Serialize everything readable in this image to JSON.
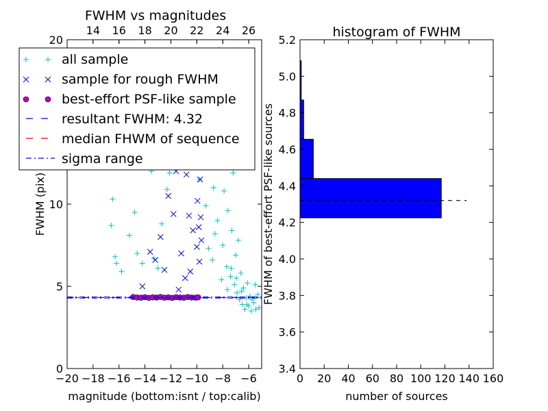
{
  "chart_data": [
    {
      "type": "scatter",
      "title": "FWHM vs magnitudes",
      "xlabel": "magnitude (bottom:isnt / top:calib)",
      "ylabel": "FWHM (pix)",
      "xlim": [
        -20,
        -5
      ],
      "ylim": [
        0,
        20
      ],
      "x_ticks": [
        -20,
        -18,
        -16,
        -14,
        -12,
        -10,
        -8,
        -6
      ],
      "x_tick_labels": [
        "−20",
        "−18",
        "−16",
        "−14",
        "−12",
        "−10",
        "−8",
        "−6"
      ],
      "y_ticks": [
        0,
        5,
        10,
        20
      ],
      "y_tick_labels": [
        "0",
        "5",
        "10",
        "20"
      ],
      "top_axis": {
        "offset": 32,
        "ticks": [
          14,
          16,
          18,
          20,
          22,
          24,
          26
        ],
        "tick_labels": [
          "14",
          "16",
          "18",
          "20",
          "22",
          "24",
          "26"
        ]
      },
      "colors": {
        "all": "#00bfbf",
        "rough": "#0000ff",
        "best_face": "#bf00bf",
        "resultant": "#0000ff",
        "median": "#ff0000",
        "sigma": "#0000ff"
      },
      "series": [
        {
          "name": "all sample",
          "marker": "+",
          "color": "#00bfbf",
          "points": [
            [
              -16.6,
              8.7
            ],
            [
              -16.5,
              10.3
            ],
            [
              -16.3,
              6.8
            ],
            [
              -16.2,
              6.4
            ],
            [
              -15.8,
              5.9
            ],
            [
              -15.2,
              8.1
            ],
            [
              -14.8,
              9.5
            ],
            [
              -14.6,
              7.0
            ],
            [
              -14.2,
              6.4
            ],
            [
              -13.9,
              12.9
            ],
            [
              -13.5,
              12.0
            ],
            [
              -13.3,
              6.7
            ],
            [
              -13.0,
              6.1
            ],
            [
              -12.7,
              8.8
            ],
            [
              -12.3,
              10.9
            ],
            [
              -12.1,
              11.9
            ],
            [
              -11.6,
              14.6
            ],
            [
              -11.3,
              15.3
            ],
            [
              -11.0,
              13.2
            ],
            [
              -10.8,
              14.1
            ],
            [
              -10.5,
              12.5
            ],
            [
              -10.1,
              13.1
            ],
            [
              -10.0,
              18.2
            ],
            [
              -9.8,
              11.5
            ],
            [
              -9.6,
              19.3
            ],
            [
              -9.4,
              13.4
            ],
            [
              -9.2,
              14.5
            ],
            [
              -9.0,
              15.8
            ],
            [
              -8.9,
              17.2
            ],
            [
              -8.7,
              11.0
            ],
            [
              -8.5,
              13.8
            ],
            [
              -8.4,
              9.0
            ],
            [
              -8.3,
              19.4
            ],
            [
              -8.2,
              12.4
            ],
            [
              -8.0,
              7.5
            ],
            [
              -7.9,
              10.8
            ],
            [
              -7.8,
              16.0
            ],
            [
              -7.7,
              6.2
            ],
            [
              -7.6,
              9.6
            ],
            [
              -7.5,
              18.7
            ],
            [
              -7.4,
              5.6
            ],
            [
              -7.3,
              8.4
            ],
            [
              -7.2,
              11.9
            ],
            [
              -7.1,
              5.1
            ],
            [
              -7.0,
              6.9
            ],
            [
              -6.9,
              4.6
            ],
            [
              -6.8,
              7.8
            ],
            [
              -6.7,
              4.2
            ],
            [
              -6.6,
              5.8
            ],
            [
              -6.5,
              3.9
            ],
            [
              -6.4,
              4.9
            ],
            [
              -6.3,
              3.6
            ],
            [
              -6.2,
              4.3
            ],
            [
              -6.1,
              5.2
            ],
            [
              -6.0,
              3.8
            ],
            [
              -5.9,
              4.4
            ],
            [
              -5.8,
              3.5
            ],
            [
              -5.6,
              4.0
            ],
            [
              -5.5,
              5.1
            ],
            [
              -5.3,
              4.5
            ],
            [
              -5.2,
              3.7
            ],
            [
              -9.3,
              9.9
            ],
            [
              -9.1,
              7.3
            ],
            [
              -8.8,
              6.6
            ],
            [
              -8.6,
              8.2
            ],
            [
              -8.1,
              5.4
            ],
            [
              -7.65,
              4.8
            ],
            [
              -7.35,
              6.1
            ],
            [
              -6.95,
              5.5
            ],
            [
              -6.55,
              4.7
            ],
            [
              -6.15,
              3.9
            ],
            [
              -5.75,
              4.2
            ],
            [
              -5.45,
              3.6
            ]
          ]
        },
        {
          "name": "sample for rough FWHM",
          "marker": "x",
          "color": "#0000ff",
          "points": [
            [
              -14.2,
              5.0
            ],
            [
              -13.6,
              7.1
            ],
            [
              -13.2,
              6.6
            ],
            [
              -12.8,
              8.0
            ],
            [
              -12.5,
              6.0
            ],
            [
              -12.2,
              10.5
            ],
            [
              -11.8,
              9.4
            ],
            [
              -11.6,
              12.0
            ],
            [
              -11.2,
              7.0
            ],
            [
              -11.0,
              13.4
            ],
            [
              -10.8,
              11.8
            ],
            [
              -10.6,
              9.3
            ],
            [
              -10.4,
              15.0
            ],
            [
              -10.3,
              8.4
            ],
            [
              -10.2,
              12.7
            ],
            [
              -10.0,
              7.4
            ],
            [
              -9.95,
              10.2
            ],
            [
              -9.9,
              13.9
            ],
            [
              -9.85,
              8.6
            ],
            [
              -9.8,
              6.5
            ],
            [
              -9.75,
              11.5
            ],
            [
              -9.7,
              9.2
            ],
            [
              -9.65,
              7.8
            ],
            [
              -9.6,
              14.6
            ],
            [
              -11.4,
              4.8
            ],
            [
              -10.9,
              5.5
            ],
            [
              -10.5,
              5.9
            ]
          ]
        },
        {
          "name": "best-effort PSF-like sample",
          "marker": "o",
          "color": "#bf00bf",
          "points": [
            [
              -14.9,
              4.35
            ],
            [
              -14.6,
              4.32
            ],
            [
              -14.3,
              4.31
            ],
            [
              -14.0,
              4.34
            ],
            [
              -13.7,
              4.3
            ],
            [
              -13.4,
              4.33
            ],
            [
              -13.1,
              4.32
            ],
            [
              -12.8,
              4.35
            ],
            [
              -12.5,
              4.31
            ],
            [
              -12.2,
              4.33
            ],
            [
              -11.9,
              4.3
            ],
            [
              -11.6,
              4.34
            ],
            [
              -11.3,
              4.32
            ],
            [
              -11.0,
              4.31
            ],
            [
              -10.7,
              4.35
            ],
            [
              -10.4,
              4.32
            ],
            [
              -10.1,
              4.31
            ],
            [
              -9.9,
              4.33
            ]
          ]
        },
        {
          "name": "resultant FWHM: 4.32",
          "type": "hline",
          "style": "dashed",
          "color": "#0000ff",
          "y": 4.32
        },
        {
          "name": "median FHWM of sequence",
          "type": "hline",
          "style": "dashed",
          "color": "#ff0000",
          "y": 4.32
        },
        {
          "name": "sigma range",
          "type": "hline",
          "style": "dashdot",
          "color": "#0000ff",
          "values": [
            4.28,
            4.36
          ]
        }
      ],
      "legend": {
        "placement": "upper-left"
      },
      "grid": false
    },
    {
      "type": "bar",
      "orientation": "horizontal",
      "title": "histogram of FWHM",
      "xlabel": "number of sources",
      "ylabel": "FWHM of best-effort PSF-like sources",
      "xlim": [
        0,
        160
      ],
      "ylim": [
        3.4,
        5.2
      ],
      "x_ticks": [
        0,
        20,
        40,
        60,
        80,
        100,
        120,
        140,
        160
      ],
      "x_tick_labels": [
        "0",
        "20",
        "40",
        "60",
        "80",
        "100",
        "120",
        "140",
        "160"
      ],
      "y_ticks": [
        3.4,
        3.6,
        3.8,
        4.0,
        4.2,
        4.4,
        4.6,
        4.8,
        5.0,
        5.2
      ],
      "y_tick_labels": [
        "3.4",
        "3.6",
        "3.8",
        "4.0",
        "4.2",
        "4.4",
        "4.6",
        "4.8",
        "5.0",
        "5.2"
      ],
      "color": "#0000ff",
      "bins": [
        {
          "low": 4.225,
          "high": 4.44,
          "count": 117
        },
        {
          "low": 4.44,
          "high": 4.655,
          "count": 11
        },
        {
          "low": 4.655,
          "high": 4.87,
          "count": 3
        },
        {
          "low": 4.87,
          "high": 5.085,
          "count": 1
        }
      ],
      "reference_line": {
        "y": 4.32,
        "x_range": [
          0,
          138
        ],
        "style": "dashed",
        "color": "#000000"
      },
      "grid": false
    }
  ]
}
